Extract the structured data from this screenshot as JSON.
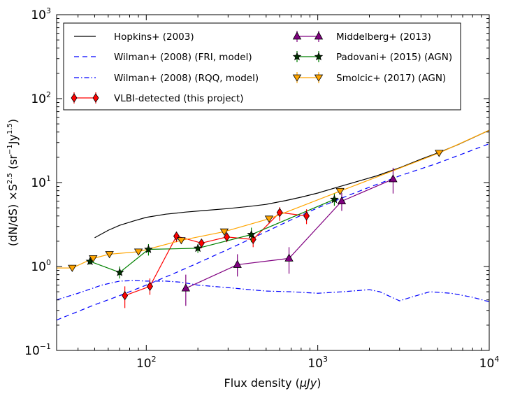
{
  "chart_data": {
    "type": "line",
    "xscale": "log",
    "yscale": "log",
    "xlim": [
      30,
      10000
    ],
    "ylim": [
      0.1,
      1000
    ],
    "xlabel_text": "Flux density (",
    "xlabel_unit": "μJy",
    "xlabel_close": ")",
    "ylabel_text": "(dN/dS) ×S",
    "ylabel_exp1": "2.5",
    "ylabel_mid": " (sr",
    "ylabel_exp2": "−1",
    "ylabel_mid2": "Jy",
    "ylabel_exp3": "1.5",
    "ylabel_close": ")",
    "x_ticks": [
      {
        "value": 100,
        "base": "10",
        "exp": "2"
      },
      {
        "value": 1000,
        "base": "10",
        "exp": "3"
      },
      {
        "value": 10000,
        "base": "10",
        "exp": "4"
      }
    ],
    "y_ticks": [
      {
        "value": 0.1,
        "base": "10",
        "exp": "−1"
      },
      {
        "value": 1,
        "base": "10",
        "exp": "0"
      },
      {
        "value": 10,
        "base": "10",
        "exp": "1"
      },
      {
        "value": 100,
        "base": "10",
        "exp": "2"
      },
      {
        "value": 1000,
        "base": "10",
        "exp": "3"
      }
    ],
    "legend_position": "top",
    "series": [
      {
        "name": "Hopkins+ (2003)",
        "kind": "line",
        "color": "#000000",
        "dash": "solid",
        "x": [
          50,
          60,
          70,
          85,
          100,
          130,
          170,
          220,
          300,
          400,
          500,
          650,
          800,
          1000,
          1300,
          1700,
          2200,
          3000,
          4000,
          5000,
          6500,
          8000,
          10000
        ],
        "y": [
          2.2,
          2.7,
          3.1,
          3.5,
          3.85,
          4.2,
          4.45,
          4.65,
          4.9,
          5.2,
          5.5,
          6.1,
          6.7,
          7.5,
          8.8,
          10.3,
          12.0,
          15.0,
          19.0,
          22.5,
          28.0,
          34.0,
          42.0
        ]
      },
      {
        "name": "Wilman+ (2008) (FRI, model)",
        "kind": "line",
        "color": "#0000ff",
        "dash": "long",
        "x": [
          30,
          50,
          70,
          100,
          150,
          200,
          300,
          500,
          700,
          1000,
          1500,
          2000,
          3000,
          5000,
          7000,
          10000
        ],
        "y": [
          0.23,
          0.35,
          0.45,
          0.6,
          0.85,
          1.1,
          1.6,
          2.6,
          3.6,
          5.0,
          7.0,
          8.8,
          12.0,
          17.0,
          22.0,
          29.0
        ]
      },
      {
        "name": "Wilman+ (2008) (RQQ, model)",
        "kind": "line",
        "color": "#0000ff",
        "dash": "dashdot",
        "x": [
          30,
          40,
          55,
          70,
          85,
          100,
          130,
          160,
          200,
          300,
          400,
          500,
          700,
          1000,
          1400,
          2000,
          2300,
          2700,
          3000,
          3500,
          4500,
          6000,
          8000,
          10000
        ],
        "y": [
          0.4,
          0.48,
          0.6,
          0.67,
          0.68,
          0.67,
          0.67,
          0.65,
          0.6,
          0.56,
          0.53,
          0.51,
          0.5,
          0.48,
          0.5,
          0.53,
          0.5,
          0.43,
          0.39,
          0.43,
          0.5,
          0.48,
          0.43,
          0.38
        ]
      },
      {
        "name": "VLBI-detected (this project)",
        "kind": "errorbar",
        "color": "#ff0000",
        "fill": "#ff0000",
        "marker": "diamond",
        "x": [
          75,
          105,
          150,
          210,
          295,
          420,
          600,
          860
        ],
        "y": [
          0.45,
          0.58,
          2.3,
          1.9,
          2.25,
          2.1,
          4.4,
          4.0
        ],
        "ylo": [
          0.32,
          0.46,
          1.95,
          1.65,
          1.95,
          1.7,
          3.5,
          3.2
        ],
        "yhi": [
          0.58,
          0.72,
          2.6,
          2.1,
          2.55,
          2.5,
          5.1,
          4.8
        ]
      },
      {
        "name": "Middelberg+ (2013)",
        "kind": "errorbar",
        "color": "#800080",
        "fill": "#800080",
        "marker": "triangle-up",
        "x": [
          170,
          340,
          680,
          1380,
          2750
        ],
        "y": [
          0.55,
          1.05,
          1.25,
          6.0,
          11.0
        ],
        "ylo": [
          0.34,
          0.76,
          0.82,
          4.6,
          7.4
        ],
        "yhi": [
          0.8,
          1.4,
          1.7,
          7.5,
          15.0
        ]
      },
      {
        "name": "Padovani+ (2015) (AGN)",
        "kind": "errorbar",
        "color": "#008000",
        "fill": "#003300",
        "marker": "star",
        "x": [
          47,
          70,
          103,
          200,
          410,
          1250
        ],
        "y": [
          1.15,
          0.85,
          1.6,
          1.65,
          2.4,
          6.3
        ],
        "ylo": [
          1.05,
          0.72,
          1.35,
          1.45,
          1.95,
          5.3
        ],
        "yhi": [
          1.25,
          1.0,
          1.85,
          1.85,
          2.9,
          7.4
        ]
      },
      {
        "name": "Smolcic+ (2017) (AGN)",
        "kind": "errorbar",
        "color": "#ffa500",
        "fill": "#ffa500",
        "marker": "triangle-down",
        "x": [
          30,
          37,
          49,
          61,
          90,
          160,
          285,
          520,
          1350,
          5100,
          10000
        ],
        "y": [
          0.96,
          0.96,
          1.25,
          1.4,
          1.5,
          2.05,
          2.6,
          3.7,
          7.9,
          22.5,
          42.0
        ],
        "ylo": [
          0.96,
          0.9,
          1.15,
          1.3,
          1.4,
          1.95,
          2.45,
          3.5,
          7.5,
          21.5,
          42.0
        ],
        "yhi": [
          0.96,
          1.02,
          1.35,
          1.5,
          1.6,
          2.15,
          2.75,
          3.9,
          8.3,
          23.5,
          42.0
        ],
        "marker_from": 1,
        "marker_to": 9
      }
    ],
    "legend_columns": [
      [
        0,
        1,
        2,
        3
      ],
      [
        4,
        5,
        6
      ]
    ]
  }
}
